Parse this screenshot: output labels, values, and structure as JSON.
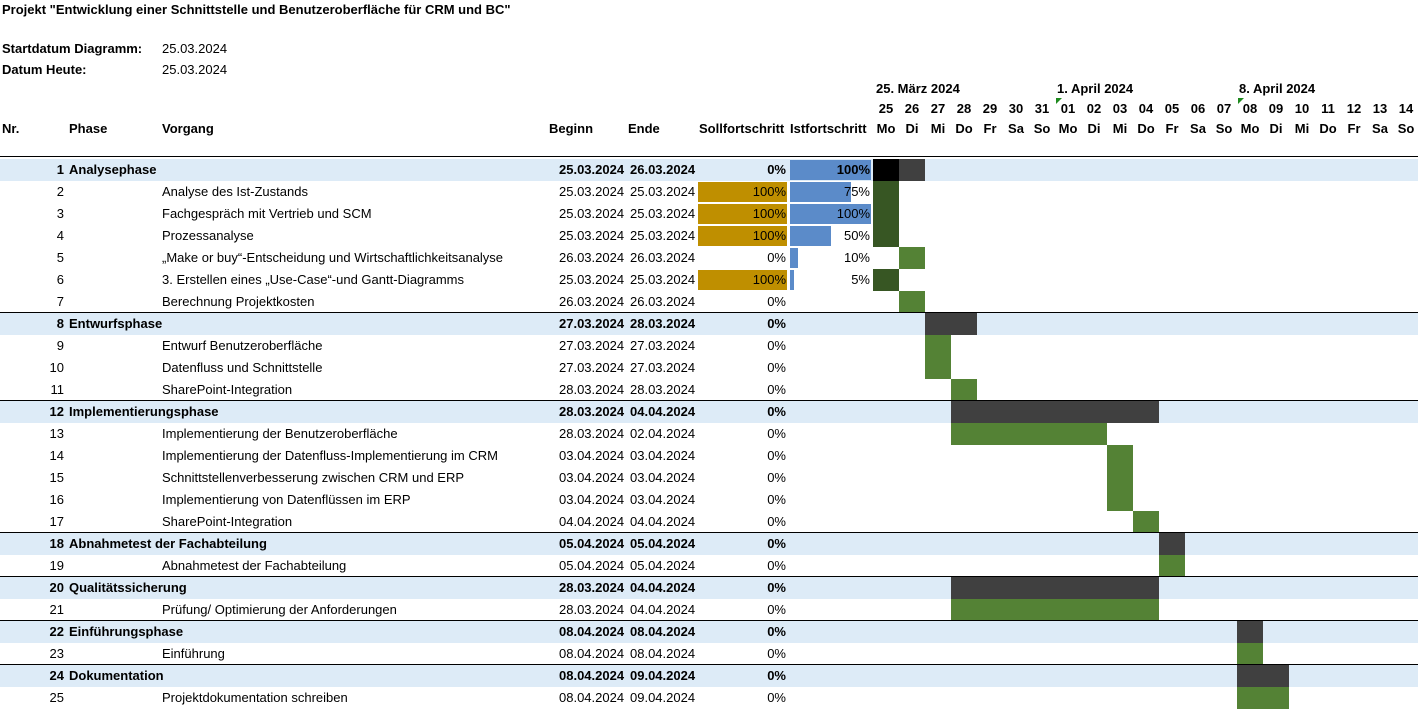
{
  "title": "Projekt \"Entwicklung einer Schnittstelle und Benutzeroberfläche für CRM und BC\"",
  "meta": {
    "start_label": "Startdatum Diagramm:",
    "start_value": "25.03.2024",
    "today_label": "Datum Heute:",
    "today_value": "25.03.2024"
  },
  "headers": {
    "nr": "Nr.",
    "phase": "Phase",
    "vorgang": "Vorgang",
    "beginn": "Beginn",
    "ende": "Ende",
    "soll": "Sollfortschritt",
    "ist": "Istfortschritt"
  },
  "weeks": [
    "25. März 2024",
    "1. April 2024",
    "8. April 2024"
  ],
  "days": [
    {
      "num": "25",
      "name": "Mo"
    },
    {
      "num": "26",
      "name": "Di"
    },
    {
      "num": "27",
      "name": "Mi"
    },
    {
      "num": "28",
      "name": "Do"
    },
    {
      "num": "29",
      "name": "Fr"
    },
    {
      "num": "30",
      "name": "Sa"
    },
    {
      "num": "31",
      "name": "So"
    },
    {
      "num": "01",
      "name": "Mo"
    },
    {
      "num": "02",
      "name": "Di"
    },
    {
      "num": "03",
      "name": "Mi"
    },
    {
      "num": "04",
      "name": "Do"
    },
    {
      "num": "05",
      "name": "Fr"
    },
    {
      "num": "06",
      "name": "Sa"
    },
    {
      "num": "07",
      "name": "So"
    },
    {
      "num": "08",
      "name": "Mo"
    },
    {
      "num": "09",
      "name": "Di"
    },
    {
      "num": "10",
      "name": "Mi"
    },
    {
      "num": "11",
      "name": "Do"
    },
    {
      "num": "12",
      "name": "Fr"
    },
    {
      "num": "13",
      "name": "Sa"
    },
    {
      "num": "14",
      "name": "So"
    }
  ],
  "colors": {
    "phase_row": "#ddebf7",
    "soll_bar": "#bf8f00",
    "ist_bar": "#5b8bc9",
    "gantt_phase": "#404040",
    "gantt_phase_done": "#000000",
    "gantt_task": "#548235",
    "gantt_task_done": "#375623"
  },
  "rows": [
    {
      "nr": "1",
      "phase": "Analysephase",
      "vorgang": "",
      "beginn": "25.03.2024",
      "ende": "26.03.2024",
      "soll": 0,
      "soll_label": "0%",
      "ist": 1.0,
      "ist_label": "100%",
      "is_phase": true,
      "start": 0,
      "len": 2
    },
    {
      "nr": "2",
      "phase": "",
      "vorgang": "Analyse des Ist-Zustands",
      "beginn": "25.03.2024",
      "ende": "25.03.2024",
      "soll": 1.0,
      "soll_label": "100%",
      "ist": 0.75,
      "ist_label": "75%",
      "is_phase": false,
      "start": 0,
      "len": 1
    },
    {
      "nr": "3",
      "phase": "",
      "vorgang": "Fachgespräch mit Vertrieb und SCM",
      "beginn": "25.03.2024",
      "ende": "25.03.2024",
      "soll": 1.0,
      "soll_label": "100%",
      "ist": 1.0,
      "ist_label": "100%",
      "is_phase": false,
      "start": 0,
      "len": 1
    },
    {
      "nr": "4",
      "phase": "",
      "vorgang": "Prozessanalyse",
      "beginn": "25.03.2024",
      "ende": "25.03.2024",
      "soll": 1.0,
      "soll_label": "100%",
      "ist": 0.5,
      "ist_label": "50%",
      "is_phase": false,
      "start": 0,
      "len": 1
    },
    {
      "nr": "5",
      "phase": "",
      "vorgang": "„Make or buy“-Entscheidung und Wirtschaftlichkeitsanalyse",
      "beginn": "26.03.2024",
      "ende": "26.03.2024",
      "soll": 0,
      "soll_label": "0%",
      "ist": 0.1,
      "ist_label": "10%",
      "is_phase": false,
      "start": 1,
      "len": 1
    },
    {
      "nr": "6",
      "phase": "",
      "vorgang": "3. Erstellen eines „Use-Case“-und Gantt-Diagramms",
      "beginn": "25.03.2024",
      "ende": "25.03.2024",
      "soll": 1.0,
      "soll_label": "100%",
      "ist": 0.05,
      "ist_label": "5%",
      "is_phase": false,
      "start": 0,
      "len": 1
    },
    {
      "nr": "7",
      "phase": "",
      "vorgang": "Berechnung Projektkosten",
      "beginn": "26.03.2024",
      "ende": "26.03.2024",
      "soll": 0,
      "soll_label": "0%",
      "ist": 0,
      "ist_label": "",
      "is_phase": false,
      "start": 1,
      "len": 1
    },
    {
      "nr": "8",
      "phase": "Entwurfsphase",
      "vorgang": "",
      "beginn": "27.03.2024",
      "ende": "28.03.2024",
      "soll": 0,
      "soll_label": "0%",
      "ist": 0,
      "ist_label": "",
      "is_phase": true,
      "start": 2,
      "len": 2
    },
    {
      "nr": "9",
      "phase": "",
      "vorgang": "Entwurf Benutzeroberfläche",
      "beginn": "27.03.2024",
      "ende": "27.03.2024",
      "soll": 0,
      "soll_label": "0%",
      "ist": 0,
      "ist_label": "",
      "is_phase": false,
      "start": 2,
      "len": 1
    },
    {
      "nr": "10",
      "phase": "",
      "vorgang": "Datenfluss und Schnittstelle",
      "beginn": "27.03.2024",
      "ende": "27.03.2024",
      "soll": 0,
      "soll_label": "0%",
      "ist": 0,
      "ist_label": "",
      "is_phase": false,
      "start": 2,
      "len": 1
    },
    {
      "nr": "11",
      "phase": "",
      "vorgang": "SharePoint-Integration",
      "beginn": "28.03.2024",
      "ende": "28.03.2024",
      "soll": 0,
      "soll_label": "0%",
      "ist": 0,
      "ist_label": "",
      "is_phase": false,
      "start": 3,
      "len": 1
    },
    {
      "nr": "12",
      "phase": "Implementierungsphase",
      "vorgang": "",
      "beginn": "28.03.2024",
      "ende": "04.04.2024",
      "soll": 0,
      "soll_label": "0%",
      "ist": 0,
      "ist_label": "",
      "is_phase": true,
      "start": 3,
      "len": 8
    },
    {
      "nr": "13",
      "phase": "",
      "vorgang": "Implementierung der Benutzeroberfläche",
      "beginn": "28.03.2024",
      "ende": "02.04.2024",
      "soll": 0,
      "soll_label": "0%",
      "ist": 0,
      "ist_label": "",
      "is_phase": false,
      "start": 3,
      "len": 6
    },
    {
      "nr": "14",
      "phase": "",
      "vorgang": "Implementierung der Datenfluss-Implementierung im CRM",
      "beginn": "03.04.2024",
      "ende": "03.04.2024",
      "soll": 0,
      "soll_label": "0%",
      "ist": 0,
      "ist_label": "",
      "is_phase": false,
      "start": 9,
      "len": 1
    },
    {
      "nr": "15",
      "phase": "",
      "vorgang": "Schnittstellenverbesserung zwischen CRM und ERP",
      "beginn": "03.04.2024",
      "ende": "03.04.2024",
      "soll": 0,
      "soll_label": "0%",
      "ist": 0,
      "ist_label": "",
      "is_phase": false,
      "start": 9,
      "len": 1
    },
    {
      "nr": "16",
      "phase": "",
      "vorgang": "Implementierung von Datenflüssen im ERP",
      "beginn": "03.04.2024",
      "ende": "03.04.2024",
      "soll": 0,
      "soll_label": "0%",
      "ist": 0,
      "ist_label": "",
      "is_phase": false,
      "start": 9,
      "len": 1
    },
    {
      "nr": "17",
      "phase": "",
      "vorgang": "SharePoint-Integration",
      "beginn": "04.04.2024",
      "ende": "04.04.2024",
      "soll": 0,
      "soll_label": "0%",
      "ist": 0,
      "ist_label": "",
      "is_phase": false,
      "start": 10,
      "len": 1
    },
    {
      "nr": "18",
      "phase": "Abnahmetest der Fachabteilung",
      "vorgang": "",
      "beginn": "05.04.2024",
      "ende": "05.04.2024",
      "soll": 0,
      "soll_label": "0%",
      "ist": 0,
      "ist_label": "",
      "is_phase": true,
      "start": 11,
      "len": 1
    },
    {
      "nr": "19",
      "phase": "",
      "vorgang": "Abnahmetest der Fachabteilung",
      "beginn": "05.04.2024",
      "ende": "05.04.2024",
      "soll": 0,
      "soll_label": "0%",
      "ist": 0,
      "ist_label": "",
      "is_phase": false,
      "start": 11,
      "len": 1
    },
    {
      "nr": "20",
      "phase": "Qualitätssicherung",
      "vorgang": "",
      "beginn": "28.03.2024",
      "ende": "04.04.2024",
      "soll": 0,
      "soll_label": "0%",
      "ist": 0,
      "ist_label": "",
      "is_phase": true,
      "start": 3,
      "len": 8
    },
    {
      "nr": "21",
      "phase": "",
      "vorgang": "Prüfung/ Optimierung der Anforderungen",
      "beginn": "28.03.2024",
      "ende": "04.04.2024",
      "soll": 0,
      "soll_label": "0%",
      "ist": 0,
      "ist_label": "",
      "is_phase": false,
      "start": 3,
      "len": 8
    },
    {
      "nr": "22",
      "phase": "Einführungsphase",
      "vorgang": "",
      "beginn": "08.04.2024",
      "ende": "08.04.2024",
      "soll": 0,
      "soll_label": "0%",
      "ist": 0,
      "ist_label": "",
      "is_phase": true,
      "start": 14,
      "len": 1
    },
    {
      "nr": "23",
      "phase": "",
      "vorgang": "Einführung",
      "beginn": "08.04.2024",
      "ende": "08.04.2024",
      "soll": 0,
      "soll_label": "0%",
      "ist": 0,
      "ist_label": "",
      "is_phase": false,
      "start": 14,
      "len": 1
    },
    {
      "nr": "24",
      "phase": "Dokumentation",
      "vorgang": "",
      "beginn": "08.04.2024",
      "ende": "09.04.2024",
      "soll": 0,
      "soll_label": "0%",
      "ist": 0,
      "ist_label": "",
      "is_phase": true,
      "start": 14,
      "len": 2
    },
    {
      "nr": "25",
      "phase": "",
      "vorgang": "Projektdokumentation schreiben",
      "beginn": "08.04.2024",
      "ende": "09.04.2024",
      "soll": 0,
      "soll_label": "0%",
      "ist": 0,
      "ist_label": "",
      "is_phase": false,
      "start": 14,
      "len": 2
    }
  ]
}
